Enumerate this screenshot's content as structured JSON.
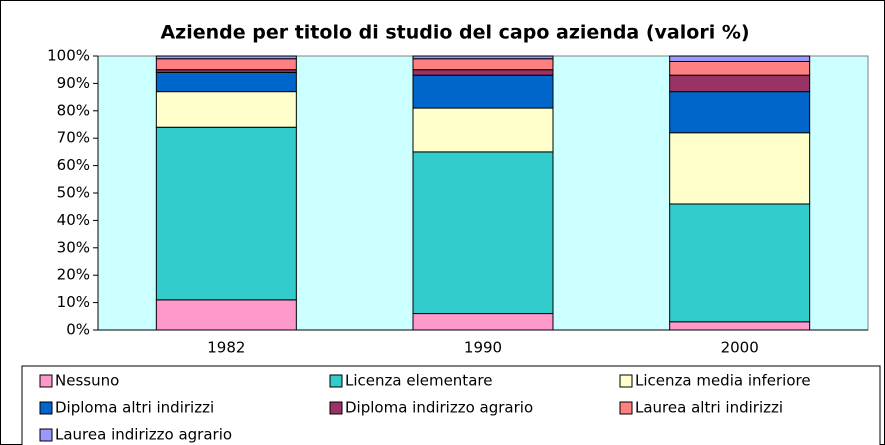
{
  "chart_data": {
    "type": "stacked_bar",
    "title": "Aziende per titolo di studio del capo azienda (valori %)",
    "categories": [
      "1982",
      "1990",
      "2000"
    ],
    "series": [
      {
        "name": "Nessuno",
        "color": "#ff99cc",
        "values": [
          11,
          6,
          3
        ]
      },
      {
        "name": "Licenza elementare",
        "color": "#33cccc",
        "values": [
          63,
          59,
          43
        ]
      },
      {
        "name": "Licenza media inferiore",
        "color": "#ffffcc",
        "values": [
          13,
          16,
          26
        ]
      },
      {
        "name": "Diploma altri indirizzi",
        "color": "#0066cc",
        "values": [
          7,
          12,
          15
        ]
      },
      {
        "name": "Diploma indirizzo agrario",
        "color": "#993366",
        "values": [
          1,
          2,
          6
        ]
      },
      {
        "name": "Laurea altri indirizzi",
        "color": "#ff8080",
        "values": [
          4,
          4,
          5
        ]
      },
      {
        "name": "Laurea indirizzo agrario",
        "color": "#9999ff",
        "values": [
          1,
          1,
          2
        ]
      }
    ],
    "ylim": [
      0,
      100
    ],
    "yticks": [
      {
        "value": 0,
        "label": "0%"
      },
      {
        "value": 10,
        "label": "10%"
      },
      {
        "value": 20,
        "label": "20%"
      },
      {
        "value": 30,
        "label": "30%"
      },
      {
        "value": 40,
        "label": "40%"
      },
      {
        "value": 50,
        "label": "50%"
      },
      {
        "value": 60,
        "label": "60%"
      },
      {
        "value": 70,
        "label": "70%"
      },
      {
        "value": 80,
        "label": "80%"
      },
      {
        "value": 90,
        "label": "90%"
      },
      {
        "value": 100,
        "label": "100%"
      }
    ],
    "grid": false,
    "plot_background": "#ccffff",
    "legend": "bottom"
  }
}
